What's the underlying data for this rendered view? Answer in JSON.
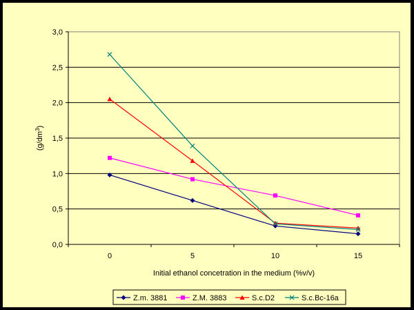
{
  "chart_data": {
    "type": "line",
    "x": [
      0,
      5,
      10,
      15
    ],
    "xlabel": "Initial ethanol concetration in the medium (%v/v)",
    "ylabel": "(g/dm³)",
    "ylabel_main": "(g/dm",
    "ylabel_sup": "3",
    "ylabel_end": ")",
    "ylim": [
      0,
      3.0
    ],
    "yticks": [
      "0,0",
      "0,5",
      "1,0",
      "1,5",
      "2,0",
      "2,5",
      "3,0"
    ],
    "xticks": [
      "0",
      "5",
      "10",
      "15"
    ],
    "grid": "horizontal",
    "legend_position": "bottom",
    "background": "#ffffc0",
    "series": [
      {
        "name": "Z.m. 3881",
        "values": [
          0.98,
          0.62,
          0.26,
          0.15
        ],
        "color": "#000080",
        "marker": "diamond"
      },
      {
        "name": "Z.M. 3883",
        "values": [
          1.22,
          0.92,
          0.69,
          0.41
        ],
        "color": "#ff00ff",
        "marker": "square"
      },
      {
        "name": "S.c.D2",
        "values": [
          2.05,
          1.18,
          0.3,
          0.23
        ],
        "color": "#ff0000",
        "marker": "triangle"
      },
      {
        "name": "S.c.Bc-16a",
        "values": [
          2.68,
          1.39,
          0.29,
          0.21
        ],
        "color": "#008080",
        "marker": "x"
      }
    ]
  }
}
